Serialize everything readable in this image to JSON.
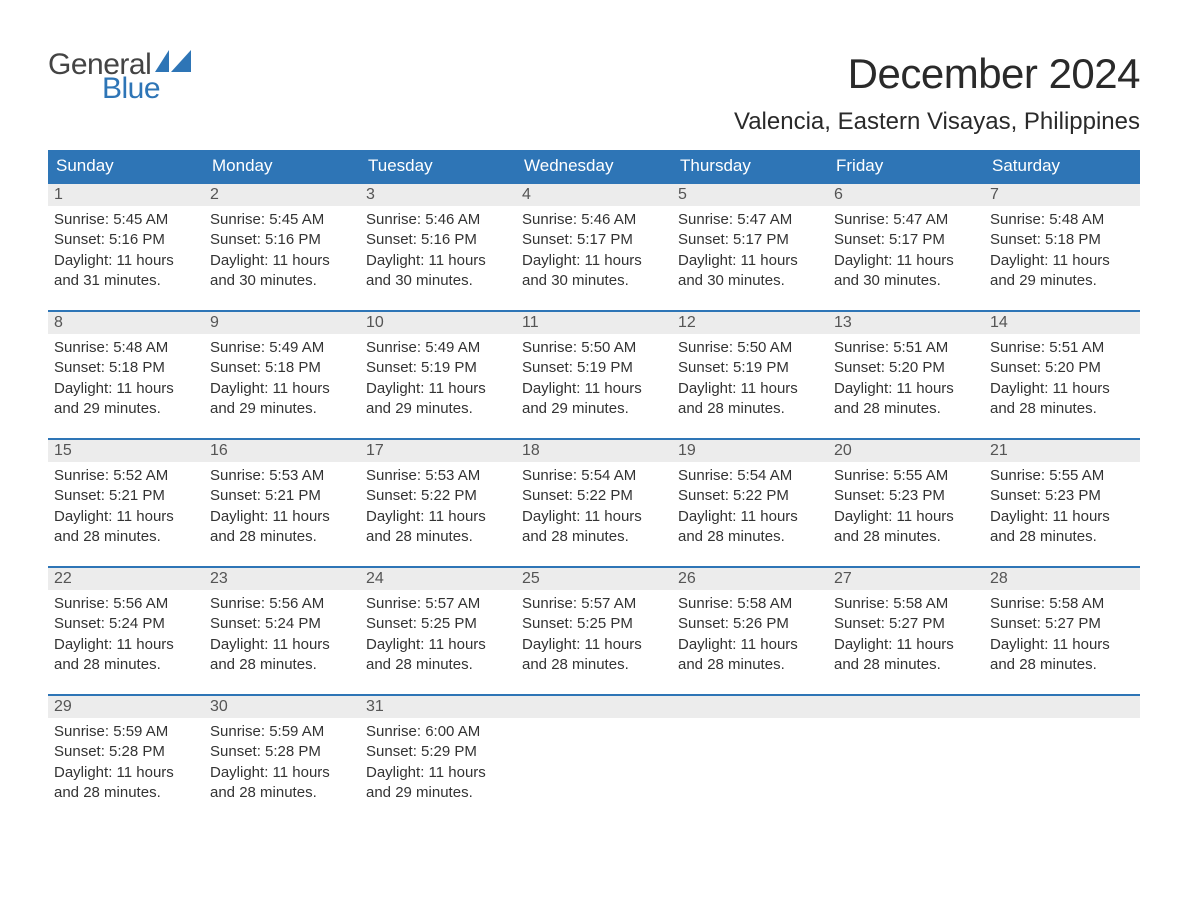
{
  "logo": {
    "text_top": "General",
    "text_bottom": "Blue",
    "sail_color": "#2e75b6"
  },
  "header": {
    "month_title": "December 2024",
    "location": "Valencia, Eastern Visayas, Philippines"
  },
  "styles": {
    "header_bg": "#2e75b6",
    "header_fg": "#ffffff",
    "daynum_bg": "#ececec",
    "row_border": "#2e75b6",
    "body_bg": "#ffffff",
    "text_color": "#333333",
    "title_fontsize_pt": 32,
    "location_fontsize_pt": 18,
    "th_fontsize_pt": 13,
    "cell_fontsize_pt": 11
  },
  "calendar": {
    "type": "table",
    "columns": [
      "Sunday",
      "Monday",
      "Tuesday",
      "Wednesday",
      "Thursday",
      "Friday",
      "Saturday"
    ],
    "weeks": [
      [
        {
          "day": 1,
          "sunrise": "5:45 AM",
          "sunset": "5:16 PM",
          "daylight": "11 hours and 31 minutes."
        },
        {
          "day": 2,
          "sunrise": "5:45 AM",
          "sunset": "5:16 PM",
          "daylight": "11 hours and 30 minutes."
        },
        {
          "day": 3,
          "sunrise": "5:46 AM",
          "sunset": "5:16 PM",
          "daylight": "11 hours and 30 minutes."
        },
        {
          "day": 4,
          "sunrise": "5:46 AM",
          "sunset": "5:17 PM",
          "daylight": "11 hours and 30 minutes."
        },
        {
          "day": 5,
          "sunrise": "5:47 AM",
          "sunset": "5:17 PM",
          "daylight": "11 hours and 30 minutes."
        },
        {
          "day": 6,
          "sunrise": "5:47 AM",
          "sunset": "5:17 PM",
          "daylight": "11 hours and 30 minutes."
        },
        {
          "day": 7,
          "sunrise": "5:48 AM",
          "sunset": "5:18 PM",
          "daylight": "11 hours and 29 minutes."
        }
      ],
      [
        {
          "day": 8,
          "sunrise": "5:48 AM",
          "sunset": "5:18 PM",
          "daylight": "11 hours and 29 minutes."
        },
        {
          "day": 9,
          "sunrise": "5:49 AM",
          "sunset": "5:18 PM",
          "daylight": "11 hours and 29 minutes."
        },
        {
          "day": 10,
          "sunrise": "5:49 AM",
          "sunset": "5:19 PM",
          "daylight": "11 hours and 29 minutes."
        },
        {
          "day": 11,
          "sunrise": "5:50 AM",
          "sunset": "5:19 PM",
          "daylight": "11 hours and 29 minutes."
        },
        {
          "day": 12,
          "sunrise": "5:50 AM",
          "sunset": "5:19 PM",
          "daylight": "11 hours and 28 minutes."
        },
        {
          "day": 13,
          "sunrise": "5:51 AM",
          "sunset": "5:20 PM",
          "daylight": "11 hours and 28 minutes."
        },
        {
          "day": 14,
          "sunrise": "5:51 AM",
          "sunset": "5:20 PM",
          "daylight": "11 hours and 28 minutes."
        }
      ],
      [
        {
          "day": 15,
          "sunrise": "5:52 AM",
          "sunset": "5:21 PM",
          "daylight": "11 hours and 28 minutes."
        },
        {
          "day": 16,
          "sunrise": "5:53 AM",
          "sunset": "5:21 PM",
          "daylight": "11 hours and 28 minutes."
        },
        {
          "day": 17,
          "sunrise": "5:53 AM",
          "sunset": "5:22 PM",
          "daylight": "11 hours and 28 minutes."
        },
        {
          "day": 18,
          "sunrise": "5:54 AM",
          "sunset": "5:22 PM",
          "daylight": "11 hours and 28 minutes."
        },
        {
          "day": 19,
          "sunrise": "5:54 AM",
          "sunset": "5:22 PM",
          "daylight": "11 hours and 28 minutes."
        },
        {
          "day": 20,
          "sunrise": "5:55 AM",
          "sunset": "5:23 PM",
          "daylight": "11 hours and 28 minutes."
        },
        {
          "day": 21,
          "sunrise": "5:55 AM",
          "sunset": "5:23 PM",
          "daylight": "11 hours and 28 minutes."
        }
      ],
      [
        {
          "day": 22,
          "sunrise": "5:56 AM",
          "sunset": "5:24 PM",
          "daylight": "11 hours and 28 minutes."
        },
        {
          "day": 23,
          "sunrise": "5:56 AM",
          "sunset": "5:24 PM",
          "daylight": "11 hours and 28 minutes."
        },
        {
          "day": 24,
          "sunrise": "5:57 AM",
          "sunset": "5:25 PM",
          "daylight": "11 hours and 28 minutes."
        },
        {
          "day": 25,
          "sunrise": "5:57 AM",
          "sunset": "5:25 PM",
          "daylight": "11 hours and 28 minutes."
        },
        {
          "day": 26,
          "sunrise": "5:58 AM",
          "sunset": "5:26 PM",
          "daylight": "11 hours and 28 minutes."
        },
        {
          "day": 27,
          "sunrise": "5:58 AM",
          "sunset": "5:27 PM",
          "daylight": "11 hours and 28 minutes."
        },
        {
          "day": 28,
          "sunrise": "5:58 AM",
          "sunset": "5:27 PM",
          "daylight": "11 hours and 28 minutes."
        }
      ],
      [
        {
          "day": 29,
          "sunrise": "5:59 AM",
          "sunset": "5:28 PM",
          "daylight": "11 hours and 28 minutes."
        },
        {
          "day": 30,
          "sunrise": "5:59 AM",
          "sunset": "5:28 PM",
          "daylight": "11 hours and 28 minutes."
        },
        {
          "day": 31,
          "sunrise": "6:00 AM",
          "sunset": "5:29 PM",
          "daylight": "11 hours and 29 minutes."
        },
        null,
        null,
        null,
        null
      ]
    ],
    "labels": {
      "sunrise": "Sunrise:",
      "sunset": "Sunset:",
      "daylight": "Daylight:"
    }
  }
}
